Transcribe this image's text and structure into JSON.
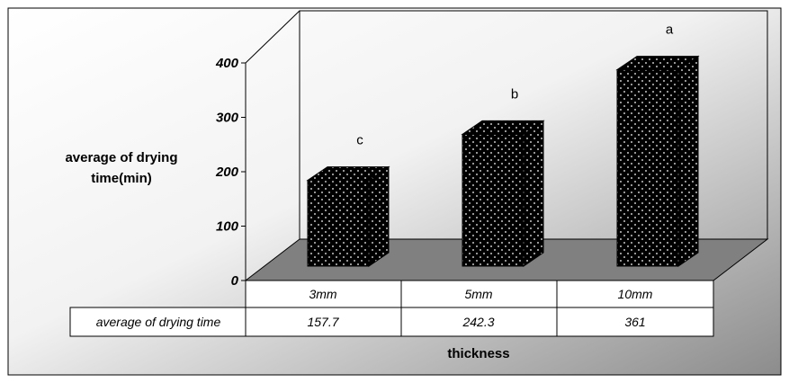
{
  "chart_data": {
    "type": "bar",
    "categories": [
      "3mm",
      "5mm",
      "10mm"
    ],
    "series": [
      {
        "name": "average of drying time",
        "values": [
          157.7,
          242.3,
          361
        ]
      }
    ],
    "annotations": [
      "c",
      "b",
      "a"
    ],
    "ylabel_lines": [
      "average of drying",
      "time(min)"
    ],
    "xlabel": "thickness",
    "y_ticks": [
      "0",
      "100",
      "200",
      "300",
      "400"
    ],
    "ylim": [
      0,
      400
    ],
    "data_table": {
      "row_label": "average of drying time",
      "values": [
        "157.7",
        "242.3",
        "361"
      ]
    },
    "grid": false,
    "legend": "none"
  },
  "colors": {
    "bar": "#000000",
    "bar_dots": "#ffffff",
    "floor": "#808080",
    "background_light": "#ffffff",
    "background_dark": "#8c8c8c"
  }
}
